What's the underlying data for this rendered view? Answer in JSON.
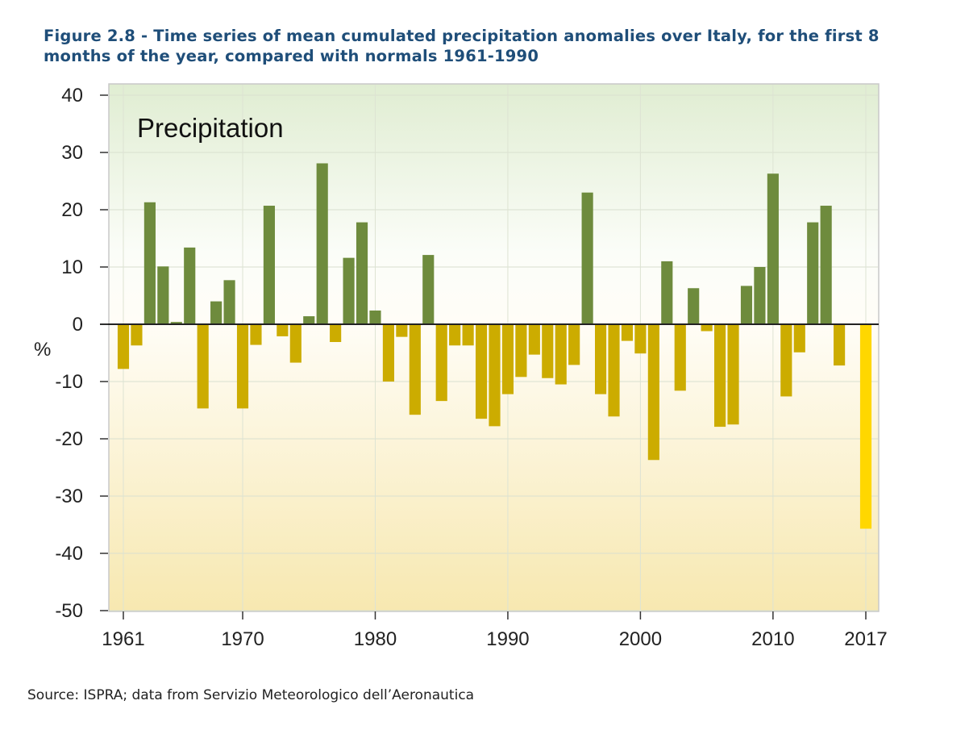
{
  "figure": {
    "title": "Figure 2.8 - Time series of mean cumulated precipitation anomalies over Italy, for the first 8 months of the year, compared with normals 1961-1990",
    "source": "Source: ISPRA; data from Servizio Meteorologico dell’Aeronautica"
  },
  "colors": {
    "positive": "#6e8b3d",
    "negative": "#ccac00",
    "highlight": "#ffd700",
    "title": "#1f4e79",
    "bg_top": "#e0edd2",
    "bg_bottom": "#f7e8b0"
  },
  "chart_data": {
    "type": "bar",
    "title": "Precipitation",
    "xlabel": "",
    "ylabel": "%",
    "ylim": [
      -50,
      40
    ],
    "yticks": [
      40,
      30,
      20,
      10,
      0,
      -10,
      -20,
      -30,
      -40,
      -50
    ],
    "xticks": [
      1961,
      1970,
      1980,
      1990,
      2000,
      2010,
      2017
    ],
    "grid": true,
    "highlight_year": 2017,
    "x": [
      1961,
      1962,
      1963,
      1964,
      1965,
      1966,
      1967,
      1968,
      1969,
      1970,
      1971,
      1972,
      1973,
      1974,
      1975,
      1976,
      1977,
      1978,
      1979,
      1980,
      1981,
      1982,
      1983,
      1984,
      1985,
      1986,
      1987,
      1988,
      1989,
      1990,
      1991,
      1992,
      1993,
      1994,
      1995,
      1996,
      1997,
      1998,
      1999,
      2000,
      2001,
      2002,
      2003,
      2004,
      2005,
      2006,
      2007,
      2008,
      2009,
      2010,
      2011,
      2012,
      2013,
      2014,
      2015,
      2016,
      2017
    ],
    "values": [
      -7.8,
      -3.7,
      21.3,
      10.1,
      0.4,
      13.4,
      -14.7,
      4.0,
      7.7,
      -14.7,
      -3.6,
      20.7,
      -2.1,
      -6.7,
      1.4,
      28.1,
      -3.1,
      11.6,
      17.8,
      2.4,
      -10.0,
      -2.2,
      -15.8,
      12.1,
      -13.4,
      -3.7,
      -3.7,
      -16.5,
      -17.8,
      -12.2,
      -9.2,
      -5.3,
      -9.4,
      -10.5,
      -7.1,
      23.0,
      -12.2,
      -16.1,
      -2.9,
      -5.1,
      -23.7,
      11.0,
      -11.6,
      6.3,
      -1.2,
      -17.9,
      -17.5,
      6.7,
      10.0,
      26.3,
      -12.6,
      -4.9,
      17.8,
      20.7,
      -7.2,
      0.0,
      -35.7
    ]
  }
}
